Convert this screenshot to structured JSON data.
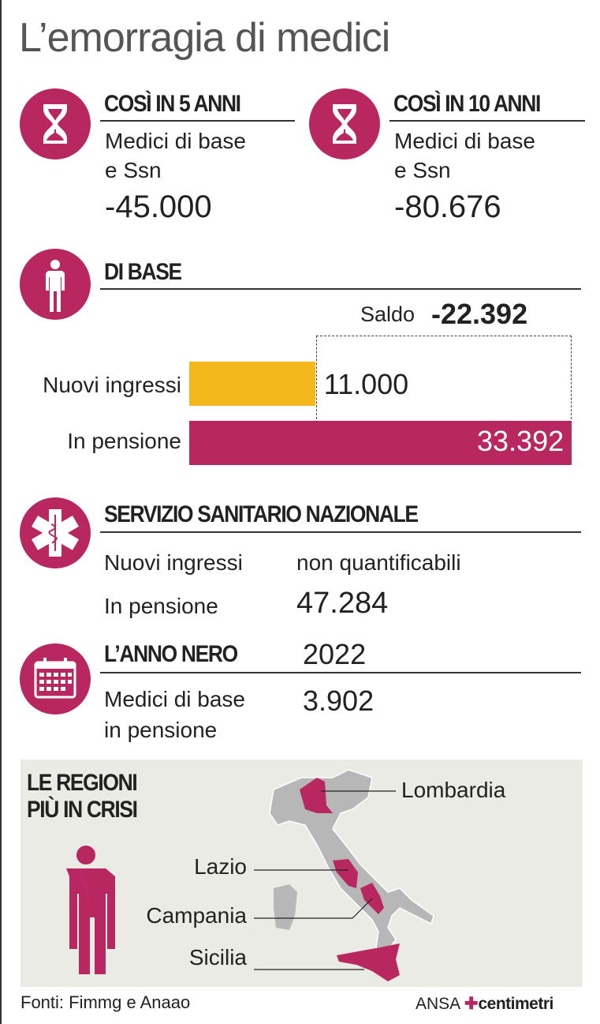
{
  "title": "L’emorragia di medici",
  "colors": {
    "accent": "#b8275f",
    "yellow": "#f5b81c",
    "panel": "#ebebe6"
  },
  "five_years": {
    "icon": "hourglass-icon",
    "header": "COSÌ IN 5 ANNI",
    "line1": "Medici di base",
    "line2": "e Ssn",
    "value": "-45.000"
  },
  "ten_years": {
    "icon": "hourglass-icon",
    "header": "COSÌ IN 10 ANNI",
    "line1": "Medici di base",
    "line2": "e Ssn",
    "value": "-80.676"
  },
  "di_base": {
    "icon": "doctor-icon",
    "header": "DI BASE",
    "saldo_label": "Saldo",
    "saldo_value": "-22.392",
    "chart_data": {
      "type": "bar",
      "orientation": "horizontal",
      "categories": [
        "Nuovi ingressi",
        "In pensione"
      ],
      "values": [
        11000,
        33392
      ],
      "labels": [
        "11.000",
        "33.392"
      ],
      "colors": [
        "#f5b81c",
        "#b8275f"
      ]
    }
  },
  "ssn": {
    "icon": "star-of-life-icon",
    "header": "SERVIZIO SANITARIO NAZIONALE",
    "rows": [
      {
        "label": "Nuovi ingressi",
        "value": "non quantificabili"
      },
      {
        "label": "In pensione",
        "value": "47.284"
      }
    ]
  },
  "anno_nero": {
    "icon": "calendar-icon",
    "header": "L’ANNO NERO",
    "year": "2022",
    "line1": "Medici di base",
    "line2": "in pensione",
    "value": "3.902"
  },
  "regioni": {
    "header1": "LE REGIONI",
    "header2": "PIÙ IN CRISI",
    "labels": [
      "Lombardia",
      "Lazio",
      "Campania",
      "Sicilia"
    ]
  },
  "footer": {
    "source": "Fonti: Fimmg e Anaao",
    "logo_text": "ANSA",
    "logo_brand": "centimetri"
  }
}
